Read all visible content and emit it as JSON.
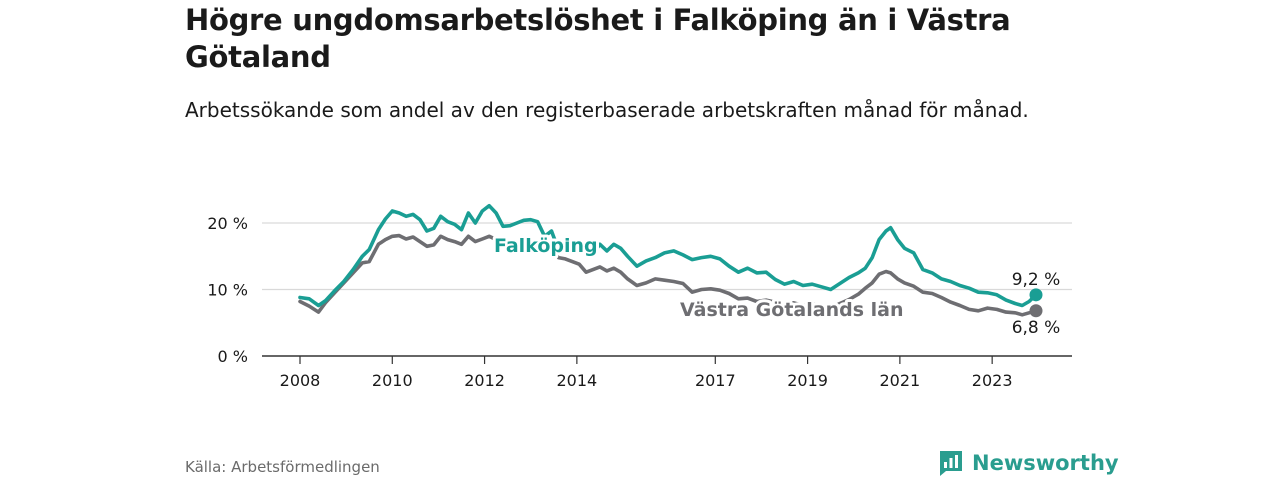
{
  "title": "Högre ungdomsarbetslöshet i Falköping än i Västra Götaland",
  "subtitle": "Arbetssökande som andel av den registerbaserade arbetskraften månad för månad.",
  "source": "Källa: Arbetsförmedlingen",
  "brand": "Newsworthy",
  "colors": {
    "falkoping": "#1a9e94",
    "vg": "#6e6e72",
    "grid": "#d9d9d9",
    "axis": "#333333",
    "brand": "#2a9d8f"
  },
  "chart_data": {
    "type": "line",
    "title": "Högre ungdomsarbetslöshet i Falköping än i Västra Götaland",
    "xlabel": "",
    "ylabel": "",
    "ylim": [
      0,
      20
    ],
    "xlim": [
      2007.95,
      2024.3
    ],
    "y_ticks": [
      0,
      10,
      20
    ],
    "y_tick_labels": [
      "0 %",
      "10 %",
      "20 %"
    ],
    "x_ticks": [
      2008,
      2010,
      2012,
      2014,
      2017,
      2019,
      2021,
      2023
    ],
    "x_tick_labels": [
      "2008",
      "2010",
      "2012",
      "2014",
      "2017",
      "2019",
      "2021",
      "2023"
    ],
    "grid": true,
    "series": [
      {
        "name": "Falköping",
        "label": "Falköping",
        "end_label": "9,2 %",
        "end_value": 9.2,
        "points": [
          [
            2008.0,
            8.8
          ],
          [
            2008.2,
            8.6
          ],
          [
            2008.4,
            7.6
          ],
          [
            2008.55,
            8.3
          ],
          [
            2008.75,
            9.8
          ],
          [
            2008.95,
            11.2
          ],
          [
            2009.15,
            13.0
          ],
          [
            2009.35,
            15.0
          ],
          [
            2009.5,
            16.0
          ],
          [
            2009.7,
            19.0
          ],
          [
            2009.85,
            20.6
          ],
          [
            2010.0,
            21.8
          ],
          [
            2010.15,
            21.5
          ],
          [
            2010.3,
            21.0
          ],
          [
            2010.45,
            21.3
          ],
          [
            2010.6,
            20.5
          ],
          [
            2010.75,
            18.8
          ],
          [
            2010.9,
            19.2
          ],
          [
            2011.05,
            21.0
          ],
          [
            2011.2,
            20.2
          ],
          [
            2011.35,
            19.8
          ],
          [
            2011.5,
            19.0
          ],
          [
            2011.65,
            21.5
          ],
          [
            2011.8,
            20.0
          ],
          [
            2011.95,
            21.8
          ],
          [
            2012.1,
            22.6
          ],
          [
            2012.25,
            21.5
          ],
          [
            2012.4,
            19.5
          ],
          [
            2012.55,
            19.6
          ],
          [
            2012.7,
            20.0
          ],
          [
            2012.85,
            20.4
          ],
          [
            2013.0,
            20.5
          ],
          [
            2013.15,
            20.2
          ],
          [
            2013.3,
            18.0
          ],
          [
            2013.45,
            18.8
          ],
          [
            2013.6,
            16.0
          ],
          [
            2013.75,
            15.6
          ],
          [
            2013.9,
            16.5
          ],
          [
            2014.05,
            16.8
          ],
          [
            2014.2,
            16.2
          ],
          [
            2014.35,
            15.4
          ],
          [
            2014.5,
            16.8
          ],
          [
            2014.65,
            15.8
          ],
          [
            2014.8,
            16.8
          ],
          [
            2014.95,
            16.2
          ],
          [
            2015.1,
            15.0
          ],
          [
            2015.3,
            13.5
          ],
          [
            2015.5,
            14.3
          ],
          [
            2015.7,
            14.8
          ],
          [
            2015.9,
            15.5
          ],
          [
            2016.1,
            15.8
          ],
          [
            2016.3,
            15.2
          ],
          [
            2016.5,
            14.5
          ],
          [
            2016.7,
            14.8
          ],
          [
            2016.9,
            15.0
          ],
          [
            2017.1,
            14.6
          ],
          [
            2017.3,
            13.5
          ],
          [
            2017.5,
            12.6
          ],
          [
            2017.7,
            13.2
          ],
          [
            2017.9,
            12.5
          ],
          [
            2018.1,
            12.6
          ],
          [
            2018.3,
            11.5
          ],
          [
            2018.5,
            10.8
          ],
          [
            2018.7,
            11.2
          ],
          [
            2018.9,
            10.6
          ],
          [
            2019.1,
            10.8
          ],
          [
            2019.3,
            10.4
          ],
          [
            2019.5,
            10.0
          ],
          [
            2019.7,
            10.9
          ],
          [
            2019.9,
            11.8
          ],
          [
            2020.1,
            12.5
          ],
          [
            2020.25,
            13.2
          ],
          [
            2020.4,
            14.8
          ],
          [
            2020.55,
            17.5
          ],
          [
            2020.7,
            18.8
          ],
          [
            2020.8,
            19.3
          ],
          [
            2020.95,
            17.5
          ],
          [
            2021.1,
            16.2
          ],
          [
            2021.3,
            15.5
          ],
          [
            2021.5,
            13.0
          ],
          [
            2021.7,
            12.5
          ],
          [
            2021.9,
            11.6
          ],
          [
            2022.1,
            11.2
          ],
          [
            2022.3,
            10.6
          ],
          [
            2022.5,
            10.2
          ],
          [
            2022.7,
            9.6
          ],
          [
            2022.9,
            9.5
          ],
          [
            2023.1,
            9.2
          ],
          [
            2023.3,
            8.4
          ],
          [
            2023.5,
            7.9
          ],
          [
            2023.65,
            7.6
          ],
          [
            2023.8,
            8.2
          ],
          [
            2023.95,
            9.2
          ]
        ]
      },
      {
        "name": "Västra Götalands län",
        "label": "Västra Götalands län",
        "end_label": "6,8 %",
        "end_value": 6.8,
        "points": [
          [
            2008.0,
            8.2
          ],
          [
            2008.2,
            7.5
          ],
          [
            2008.4,
            6.6
          ],
          [
            2008.55,
            8.0
          ],
          [
            2008.75,
            9.5
          ],
          [
            2008.95,
            11.0
          ],
          [
            2009.15,
            12.5
          ],
          [
            2009.35,
            14.0
          ],
          [
            2009.5,
            14.2
          ],
          [
            2009.7,
            16.8
          ],
          [
            2009.85,
            17.5
          ],
          [
            2010.0,
            18.0
          ],
          [
            2010.15,
            18.1
          ],
          [
            2010.3,
            17.6
          ],
          [
            2010.45,
            17.9
          ],
          [
            2010.6,
            17.2
          ],
          [
            2010.75,
            16.5
          ],
          [
            2010.9,
            16.7
          ],
          [
            2011.05,
            18.0
          ],
          [
            2011.2,
            17.5
          ],
          [
            2011.35,
            17.2
          ],
          [
            2011.5,
            16.8
          ],
          [
            2011.65,
            18.0
          ],
          [
            2011.8,
            17.2
          ],
          [
            2011.95,
            17.6
          ],
          [
            2012.1,
            18.0
          ],
          [
            2012.25,
            17.5
          ],
          [
            2012.4,
            16.8
          ],
          [
            2012.55,
            16.2
          ],
          [
            2012.7,
            16.6
          ],
          [
            2012.85,
            17.0
          ],
          [
            2013.0,
            16.8
          ],
          [
            2013.15,
            16.4
          ],
          [
            2013.3,
            15.8
          ],
          [
            2013.45,
            16.0
          ],
          [
            2013.6,
            14.8
          ],
          [
            2013.75,
            14.6
          ],
          [
            2013.9,
            14.2
          ],
          [
            2014.05,
            13.8
          ],
          [
            2014.2,
            12.6
          ],
          [
            2014.35,
            13.0
          ],
          [
            2014.5,
            13.4
          ],
          [
            2014.65,
            12.8
          ],
          [
            2014.8,
            13.2
          ],
          [
            2014.95,
            12.6
          ],
          [
            2015.1,
            11.6
          ],
          [
            2015.3,
            10.6
          ],
          [
            2015.5,
            11.0
          ],
          [
            2015.7,
            11.6
          ],
          [
            2015.9,
            11.4
          ],
          [
            2016.1,
            11.2
          ],
          [
            2016.3,
            10.9
          ],
          [
            2016.5,
            9.6
          ],
          [
            2016.7,
            10.0
          ],
          [
            2016.9,
            10.1
          ],
          [
            2017.1,
            9.9
          ],
          [
            2017.3,
            9.4
          ],
          [
            2017.5,
            8.6
          ],
          [
            2017.7,
            8.7
          ],
          [
            2017.9,
            8.2
          ],
          [
            2018.1,
            8.4
          ],
          [
            2018.3,
            8.1
          ],
          [
            2018.5,
            7.8
          ],
          [
            2018.7,
            8.0
          ],
          [
            2018.9,
            7.6
          ],
          [
            2019.1,
            7.8
          ],
          [
            2019.3,
            7.6
          ],
          [
            2019.5,
            7.2
          ],
          [
            2019.7,
            7.9
          ],
          [
            2019.9,
            8.5
          ],
          [
            2020.1,
            9.3
          ],
          [
            2020.25,
            10.2
          ],
          [
            2020.4,
            11.0
          ],
          [
            2020.55,
            12.3
          ],
          [
            2020.7,
            12.7
          ],
          [
            2020.8,
            12.5
          ],
          [
            2020.95,
            11.6
          ],
          [
            2021.1,
            11.0
          ],
          [
            2021.3,
            10.5
          ],
          [
            2021.5,
            9.6
          ],
          [
            2021.7,
            9.4
          ],
          [
            2021.9,
            8.8
          ],
          [
            2022.1,
            8.1
          ],
          [
            2022.3,
            7.6
          ],
          [
            2022.5,
            7.0
          ],
          [
            2022.7,
            6.8
          ],
          [
            2022.9,
            7.2
          ],
          [
            2023.1,
            7.0
          ],
          [
            2023.3,
            6.6
          ],
          [
            2023.5,
            6.5
          ],
          [
            2023.65,
            6.2
          ],
          [
            2023.8,
            6.5
          ],
          [
            2023.95,
            6.8
          ]
        ]
      }
    ]
  }
}
